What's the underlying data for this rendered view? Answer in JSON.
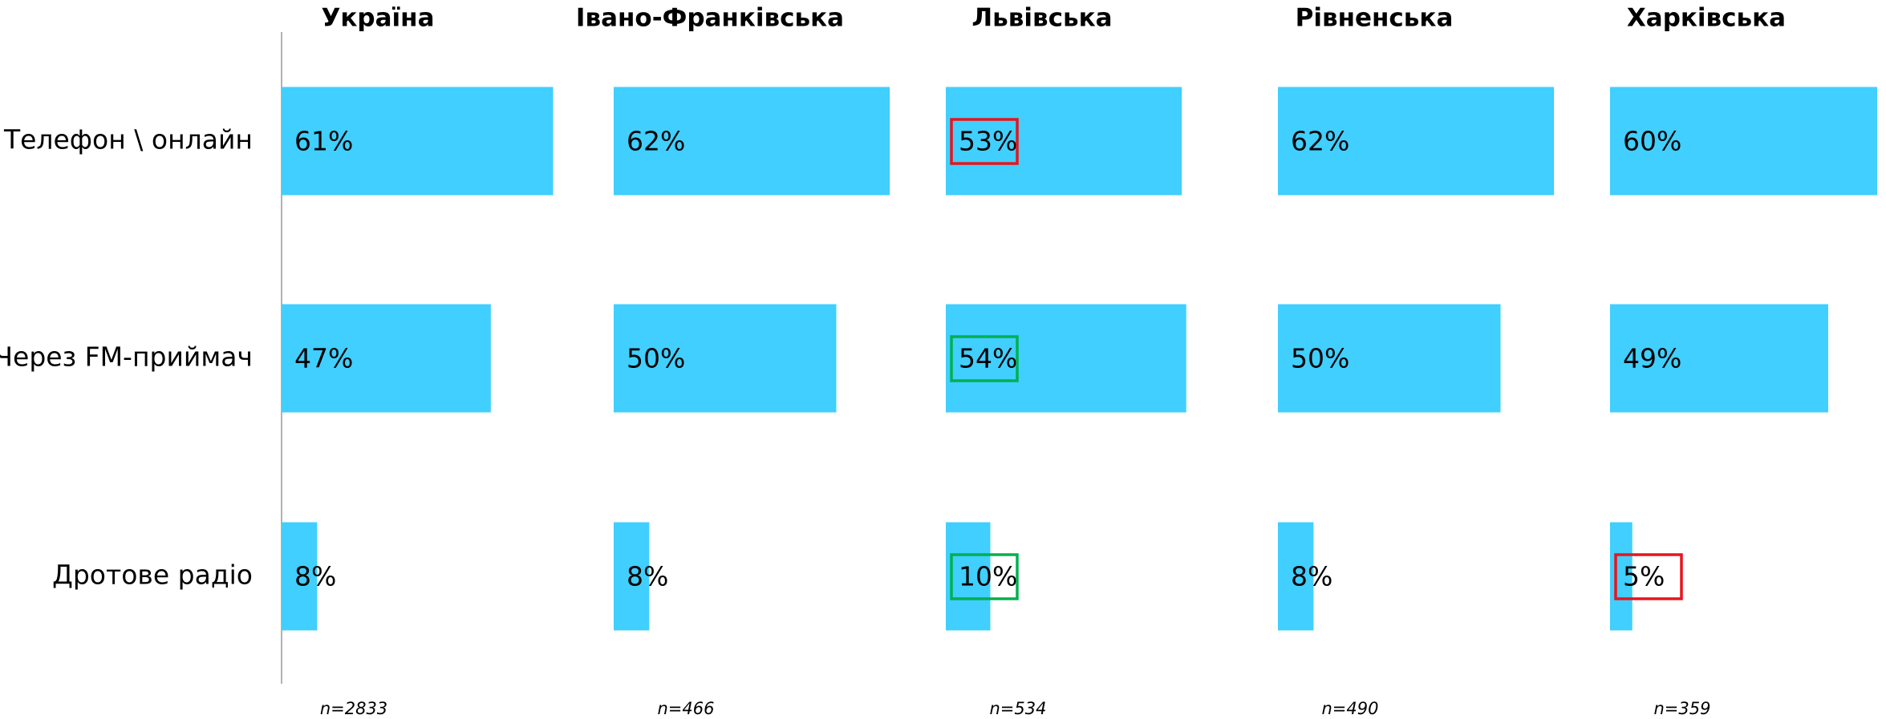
{
  "chart_data": {
    "type": "bar",
    "categories": [
      "Телефон \\ онлайн",
      "Через FM-приймач",
      "Дротове радіо"
    ],
    "color": "#40cfff",
    "xlim": [
      0,
      60
    ],
    "series": [
      {
        "name": "Україна",
        "values": [
          61,
          47,
          8
        ],
        "value_labels": [
          "61%",
          "47%",
          "8%"
        ],
        "sample": "n=2833",
        "highlight": [
          null,
          null,
          null
        ]
      },
      {
        "name": "Івано-Франківська",
        "values": [
          62,
          50,
          8
        ],
        "value_labels": [
          "62%",
          "50%",
          "8%"
        ],
        "sample": "n=466",
        "highlight": [
          null,
          null,
          null
        ]
      },
      {
        "name": "Львівська",
        "values": [
          53,
          54,
          10
        ],
        "value_labels": [
          "53%",
          "54%",
          "10%"
        ],
        "sample": "n=534",
        "highlight": [
          "#e8141c",
          "#00b050",
          "#00b050"
        ]
      },
      {
        "name": "Рівненська",
        "values": [
          62,
          50,
          8
        ],
        "value_labels": [
          "62%",
          "50%",
          "8%"
        ],
        "sample": "n=490",
        "highlight": [
          null,
          null,
          null
        ]
      },
      {
        "name": "Харківська",
        "values": [
          60,
          49,
          5
        ],
        "value_labels": [
          "60%",
          "49%",
          "5%"
        ],
        "sample": "n=359",
        "highlight": [
          null,
          null,
          "#e8141c"
        ]
      }
    ]
  }
}
